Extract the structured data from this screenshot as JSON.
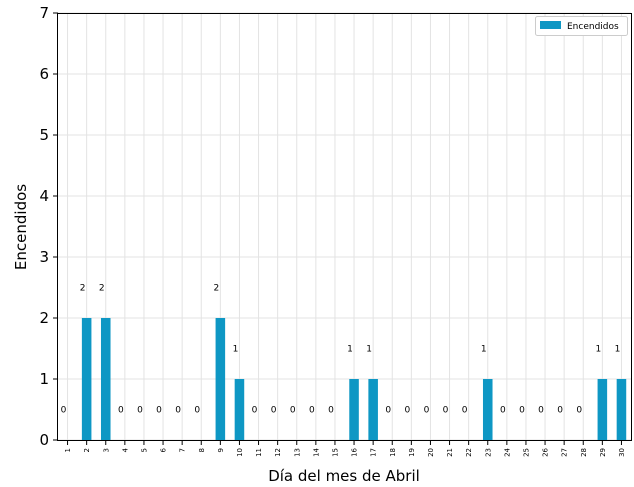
{
  "chart_data": {
    "type": "bar",
    "title": "",
    "xlabel": "Día del mes de Abril",
    "ylabel": "Encendidos",
    "ylim": [
      0,
      7
    ],
    "grid": true,
    "legend_position": "top-right",
    "categories": [
      "1",
      "2",
      "3",
      "4",
      "5",
      "6",
      "7",
      "8",
      "9",
      "10",
      "11",
      "12",
      "13",
      "14",
      "15",
      "16",
      "17",
      "18",
      "19",
      "20",
      "21",
      "22",
      "23",
      "24",
      "25",
      "26",
      "27",
      "28",
      "29",
      "30"
    ],
    "series": [
      {
        "name": "Encendidos",
        "color": "#0e97c4",
        "values": [
          0,
          2,
          2,
          0,
          0,
          0,
          0,
          0,
          2,
          1,
          0,
          0,
          0,
          0,
          0,
          1,
          1,
          0,
          0,
          0,
          0,
          0,
          1,
          0,
          0,
          0,
          0,
          0,
          1,
          1
        ]
      }
    ],
    "yticks": [
      "0",
      "1",
      "2",
      "3",
      "4",
      "5",
      "6",
      "7"
    ]
  }
}
